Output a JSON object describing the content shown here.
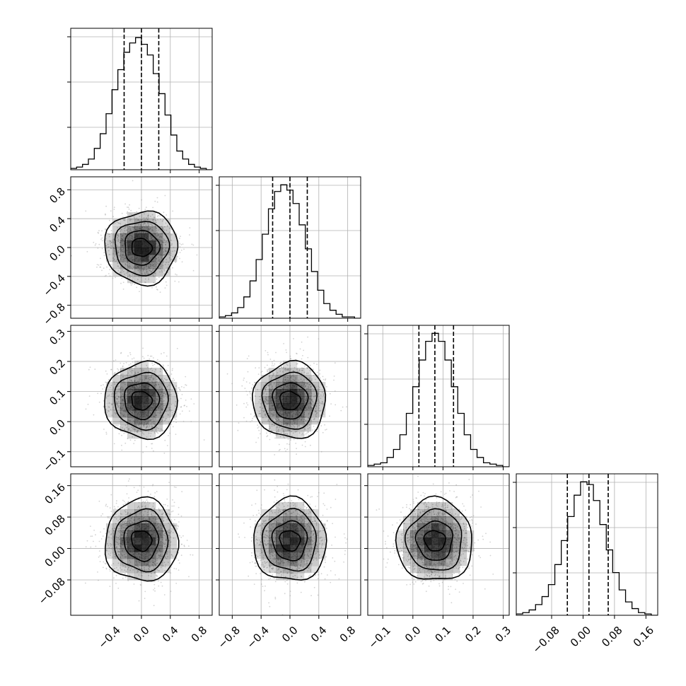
{
  "chart_data": {
    "type": "corner",
    "n_params": 4,
    "params": [
      {
        "tick_labels": [
          "−0.4",
          "0.0",
          "0.4",
          "0.8"
        ],
        "ticks": [
          -0.4,
          0.0,
          0.4,
          0.8
        ],
        "range": [
          -0.98,
          0.98
        ]
      },
      {
        "tick_labels": [
          "−0.8",
          "−0.4",
          "0.0",
          "0.4",
          "0.8"
        ],
        "ticks": [
          -0.8,
          -0.4,
          0.0,
          0.4,
          0.8
        ],
        "range": [
          -0.98,
          0.98
        ]
      },
      {
        "tick_labels": [
          "−0.1",
          "0.0",
          "0.1",
          "0.2",
          "0.3"
        ],
        "ticks": [
          -0.1,
          0.0,
          0.1,
          0.2,
          0.3
        ],
        "range": [
          -0.15,
          0.32
        ]
      },
      {
        "tick_labels": [
          "−0.08",
          "0.00",
          "0.08",
          "0.16"
        ],
        "ticks": [
          -0.08,
          0.0,
          0.08,
          0.16
        ],
        "range": [
          -0.17,
          0.19
        ]
      }
    ],
    "quantiles": [
      [
        -0.24,
        0.0,
        0.24
      ],
      [
        -0.24,
        0.0,
        0.24
      ],
      [
        0.02,
        0.073,
        0.135
      ],
      [
        -0.04,
        0.015,
        0.064
      ]
    ],
    "histograms": [
      [
        1,
        2,
        4,
        8,
        16,
        27,
        42,
        60,
        75,
        88,
        95,
        99,
        94,
        86,
        72,
        57,
        41,
        26,
        14,
        8,
        4,
        2,
        1,
        0
      ],
      [
        1,
        2,
        4,
        8,
        16,
        28,
        44,
        63,
        82,
        95,
        100,
        96,
        86,
        70,
        52,
        35,
        21,
        11,
        6,
        3,
        1,
        1,
        0
      ],
      [
        1,
        2,
        3,
        7,
        13,
        24,
        40,
        60,
        80,
        94,
        100,
        94,
        80,
        60,
        40,
        24,
        13,
        7,
        3,
        2,
        1,
        0
      ],
      [
        1,
        2,
        4,
        8,
        14,
        23,
        38,
        56,
        74,
        90,
        100,
        98,
        86,
        68,
        49,
        32,
        19,
        10,
        5,
        2,
        1,
        0
      ]
    ],
    "pair_means": {
      "1-0": [
        0.0,
        0.0
      ],
      "2-0": [
        0.0,
        0.07
      ],
      "3-0": [
        0.0,
        0.02
      ],
      "2-1": [
        0.0,
        0.07
      ],
      "3-1": [
        0.0,
        0.02
      ],
      "3-2": [
        0.073,
        0.02
      ]
    },
    "pair_sigmas": {
      "1-0": [
        0.24,
        0.24
      ],
      "2-0": [
        0.24,
        0.06
      ],
      "3-0": [
        0.24,
        0.05
      ],
      "2-1": [
        0.24,
        0.06
      ],
      "3-1": [
        0.24,
        0.05
      ],
      "3-2": [
        0.06,
        0.05
      ]
    },
    "contour_levels_sigma": [
      0.55,
      1.0,
      1.55,
      2.1
    ],
    "hist_ylim_max": 106,
    "grid": true,
    "colors": {
      "line": "#000000",
      "grid": "#b0b0b0",
      "points": "#9e9e9e",
      "density": "#000000"
    }
  }
}
